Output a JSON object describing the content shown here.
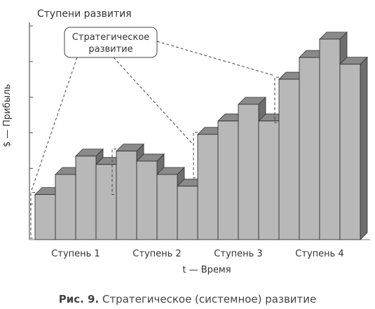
{
  "chart_data": {
    "type": "bar",
    "title": "Ступени развития",
    "ylabel": "$ — Прибыль",
    "xlabel": "t — Время",
    "categories": [
      "Ступень 1",
      "Ступень 2",
      "Ступень 3",
      "Ступень 4"
    ],
    "groups": [
      {
        "category": "Ступень 1",
        "values": [
          2.7,
          3.9,
          5.0,
          4.5
        ]
      },
      {
        "category": "Ступень 2",
        "values": [
          5.3,
          4.7,
          3.9,
          3.2
        ]
      },
      {
        "category": "Ступень 3",
        "values": [
          6.3,
          7.1,
          8.1,
          7.1
        ]
      },
      {
        "category": "Ступень 4",
        "values": [
          9.6,
          10.9,
          12.0,
          10.5
        ]
      }
    ],
    "ylim": [
      0,
      13
    ],
    "yticks": 6,
    "style": "3d-bars",
    "grid": false,
    "bar_color": "#b8b8b8",
    "annotation": "Стратегическое развитие"
  },
  "caption": {
    "label": "Рис. 9.",
    "text": "Стратегическое (системное) развитие"
  }
}
